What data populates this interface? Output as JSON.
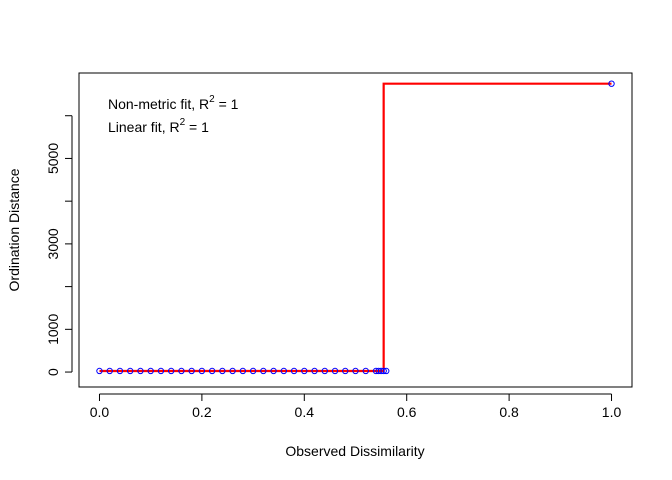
{
  "chart_data": {
    "type": "scatter",
    "xlabel": "Observed Dissimilarity",
    "ylabel": "Ordination Distance",
    "xlim": [
      -0.04,
      1.04
    ],
    "ylim": [
      -350,
      7000
    ],
    "x_ticks": [
      0.0,
      0.2,
      0.4,
      0.6,
      0.8,
      1.0
    ],
    "x_tick_labels": [
      "0.0",
      "0.2",
      "0.4",
      "0.6",
      "0.8",
      "1.0"
    ],
    "y_ticks": [
      0,
      1000,
      2000,
      3000,
      4000,
      5000,
      6000
    ],
    "y_tick_labels": [
      "0",
      "1000",
      "",
      "3000",
      "",
      "5000",
      ""
    ],
    "grid": false,
    "annotations": [
      {
        "prefix": "Non-metric fit, R",
        "sup": "2",
        "suffix": " = 1"
      },
      {
        "prefix": "Linear fit, R",
        "sup": "2",
        "suffix": " = 1"
      }
    ],
    "points": {
      "name": "",
      "color": "#0000ff",
      "x": [
        0.0,
        0.02,
        0.04,
        0.06,
        0.08,
        0.1,
        0.12,
        0.14,
        0.16,
        0.18,
        0.2,
        0.22,
        0.24,
        0.26,
        0.28,
        0.3,
        0.32,
        0.34,
        0.36,
        0.38,
        0.4,
        0.42,
        0.44,
        0.46,
        0.48,
        0.5,
        0.52,
        0.54,
        0.545,
        0.55,
        0.555,
        0.56,
        1.0
      ],
      "y": [
        25,
        25,
        25,
        25,
        25,
        25,
        25,
        25,
        25,
        25,
        25,
        25,
        25,
        25,
        25,
        25,
        25,
        25,
        25,
        25,
        25,
        25,
        25,
        25,
        25,
        25,
        25,
        25,
        25,
        25,
        25,
        25,
        6750
      ]
    },
    "step_fit": {
      "name": "",
      "color": "#ff0000",
      "x": [
        0.0,
        0.555,
        0.555,
        1.0
      ],
      "y": [
        25,
        25,
        6750,
        6750
      ]
    }
  }
}
